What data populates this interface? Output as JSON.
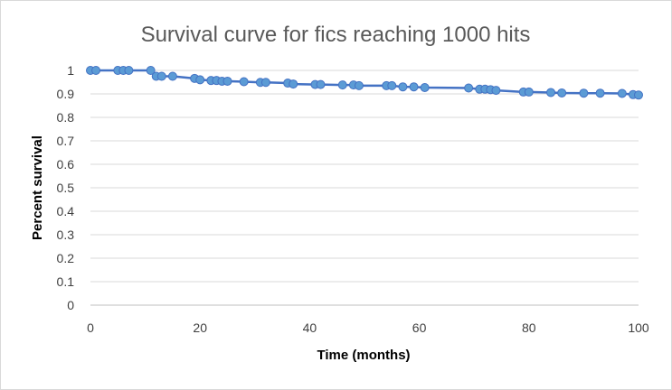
{
  "chart_data": {
    "type": "line",
    "title": "Survival curve for fics reaching 1000 hits",
    "xlabel": "Time (months)",
    "ylabel": "Percent survival",
    "xlim": [
      0,
      100
    ],
    "ylim": [
      0,
      1
    ],
    "x_ticks": [
      0,
      20,
      40,
      60,
      80,
      100
    ],
    "y_ticks": [
      0,
      0.1,
      0.2,
      0.3,
      0.4,
      0.5,
      0.6,
      0.7,
      0.8,
      0.9,
      1
    ],
    "grid": "horizontal",
    "legend": "none",
    "series_color": "#4472c4",
    "marker_fill": "#5b9bd5",
    "series": [
      {
        "points": [
          [
            0,
            1.0
          ],
          [
            1,
            1.0
          ],
          [
            5,
            1.0
          ],
          [
            6,
            1.0
          ],
          [
            7,
            1.0
          ],
          [
            11,
            1.0
          ],
          [
            12,
            0.975
          ],
          [
            13,
            0.975
          ],
          [
            15,
            0.975
          ],
          [
            19,
            0.966
          ],
          [
            20,
            0.96
          ],
          [
            22,
            0.957
          ],
          [
            23,
            0.957
          ],
          [
            24,
            0.954
          ],
          [
            25,
            0.954
          ],
          [
            28,
            0.952
          ],
          [
            31,
            0.949
          ],
          [
            32,
            0.949
          ],
          [
            36,
            0.946
          ],
          [
            37,
            0.942
          ],
          [
            41,
            0.94
          ],
          [
            42,
            0.94
          ],
          [
            46,
            0.938
          ],
          [
            48,
            0.938
          ],
          [
            49,
            0.935
          ],
          [
            54,
            0.935
          ],
          [
            55,
            0.935
          ],
          [
            57,
            0.93
          ],
          [
            59,
            0.93
          ],
          [
            61,
            0.927
          ],
          [
            69,
            0.925
          ],
          [
            71,
            0.92
          ],
          [
            72,
            0.92
          ],
          [
            73,
            0.918
          ],
          [
            74,
            0.915
          ],
          [
            79,
            0.908
          ],
          [
            80,
            0.908
          ],
          [
            84,
            0.906
          ],
          [
            86,
            0.904
          ],
          [
            90,
            0.903
          ],
          [
            93,
            0.903
          ],
          [
            97,
            0.902
          ],
          [
            99,
            0.897
          ],
          [
            100,
            0.895
          ]
        ]
      }
    ]
  }
}
